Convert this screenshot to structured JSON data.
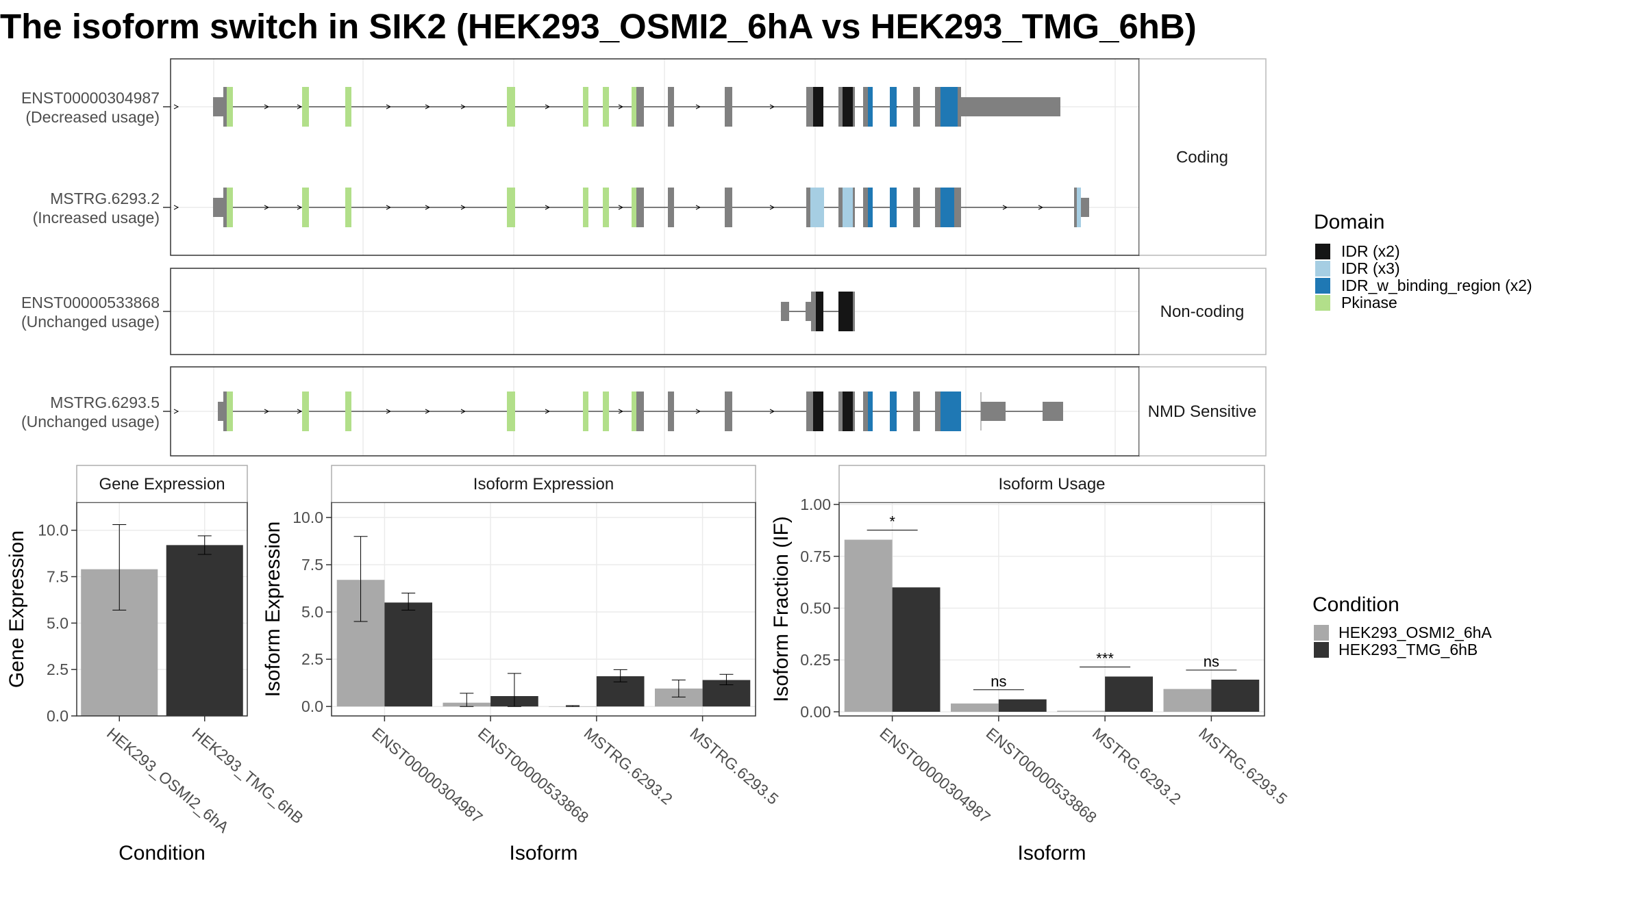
{
  "title": "The isoform switch in SIK2 (HEK293_OSMI2_6hA vs HEK293_TMG_6hB)",
  "colors": {
    "idr_x2": "#151515",
    "idr_x3": "#a6cee3",
    "idr_w_binding": "#1f78b4",
    "pkinase": "#b2df8a",
    "exon": "#808080",
    "cond1": "#a9a9a9",
    "cond2": "#333333"
  },
  "structure": {
    "facets": [
      "Coding",
      "Non-coding",
      "NMD Sensitive"
    ],
    "transcripts": [
      {
        "id": "ENST00000304987",
        "usage": "(Decreased usage)",
        "facet": 0
      },
      {
        "id": "MSTRG.6293.2",
        "usage": "(Increased usage)",
        "facet": 0
      },
      {
        "id": "ENST00000533868",
        "usage": "(Unchanged usage)",
        "facet": 1
      },
      {
        "id": "MSTRG.6293.5",
        "usage": "(Unchanged usage)",
        "facet": 2
      }
    ],
    "domain_legend_title": "Domain",
    "domains": [
      {
        "label": "IDR (x2)",
        "color": "#151515"
      },
      {
        "label": "IDR (x3)",
        "color": "#a6cee3"
      },
      {
        "label": "IDR_w_binding_region (x2)",
        "color": "#1f78b4"
      },
      {
        "label": "Pkinase",
        "color": "#b2df8a"
      }
    ]
  },
  "condition_legend": {
    "title": "Condition",
    "items": [
      {
        "label": "HEK293_OSMI2_6hA",
        "color": "#a9a9a9"
      },
      {
        "label": "HEK293_TMG_6hB",
        "color": "#333333"
      }
    ]
  },
  "chart_data": [
    {
      "type": "bar",
      "title": "Gene Expression",
      "xlabel": "Condition",
      "ylabel": "Gene Expression",
      "categories": [
        "HEK293_OSMI2_6hA",
        "HEK293_TMG_6hB"
      ],
      "ylim": [
        0,
        11.5
      ],
      "yticks": [
        "0.0",
        "2.5",
        "5.0",
        "7.5",
        "10.0"
      ],
      "series": [
        {
          "values": [
            7.9,
            9.2
          ],
          "err_low": [
            5.7,
            8.7
          ],
          "err_high": [
            10.3,
            9.7
          ]
        }
      ]
    },
    {
      "type": "bar",
      "title": "Isoform Expression",
      "xlabel": "Isoform",
      "ylabel": "Isoform Expression",
      "categories": [
        "ENST00000304987",
        "ENST00000533868",
        "MSTRG.6293.2",
        "MSTRG.6293.5"
      ],
      "ylim": [
        -0.5,
        10.8
      ],
      "yticks": [
        "0.0",
        "2.5",
        "5.0",
        "7.5",
        "10.0"
      ],
      "series": [
        {
          "name": "HEK293_OSMI2_6hA",
          "values": [
            6.7,
            0.2,
            0.0,
            0.95
          ],
          "err_low": [
            4.5,
            0.0,
            0.0,
            0.5
          ],
          "err_high": [
            9.0,
            0.7,
            0.05,
            1.4
          ]
        },
        {
          "name": "HEK293_TMG_6hB",
          "values": [
            5.5,
            0.55,
            1.6,
            1.4
          ],
          "err_low": [
            5.1,
            0.0,
            1.3,
            1.15
          ],
          "err_high": [
            6.0,
            1.75,
            1.95,
            1.7
          ]
        }
      ]
    },
    {
      "type": "bar",
      "title": "Isoform Usage",
      "xlabel": "Isoform",
      "ylabel": "Isoform Fraction (IF)",
      "categories": [
        "ENST00000304987",
        "ENST00000533868",
        "MSTRG.6293.2",
        "MSTRG.6293.5"
      ],
      "ylim": [
        -0.02,
        1.01
      ],
      "yticks": [
        "0.00",
        "0.25",
        "0.50",
        "0.75",
        "1.00"
      ],
      "series": [
        {
          "name": "HEK293_OSMI2_6hA",
          "values": [
            0.83,
            0.04,
            0.005,
            0.11
          ]
        },
        {
          "name": "HEK293_TMG_6hB",
          "values": [
            0.6,
            0.06,
            0.17,
            0.155
          ]
        }
      ],
      "significance": [
        "*",
        "ns",
        "***",
        "ns"
      ]
    }
  ]
}
